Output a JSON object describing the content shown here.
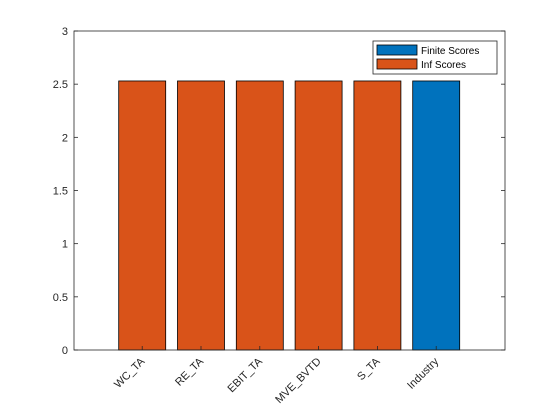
{
  "chart_data": {
    "type": "bar",
    "categories": [
      "WC_TA",
      "RE_TA",
      "EBIT_TA",
      "MVE_BVTD",
      "S_TA",
      "Industry"
    ],
    "series": [
      {
        "name": "Finite Scores",
        "values": [
          0,
          0,
          0,
          0,
          0,
          2.53
        ],
        "color": "#0072BD"
      },
      {
        "name": "Inf Scores",
        "values": [
          2.53,
          2.53,
          2.53,
          2.53,
          2.53,
          0
        ],
        "color": "#D95319"
      }
    ],
    "title": "",
    "xlabel": "",
    "ylabel": "",
    "ylim": [
      0,
      3
    ],
    "yticks": [
      0,
      0.5,
      1,
      1.5,
      2,
      2.5,
      3
    ],
    "grid": false,
    "legend_position": "top-right",
    "xtick_rotation": -45
  }
}
